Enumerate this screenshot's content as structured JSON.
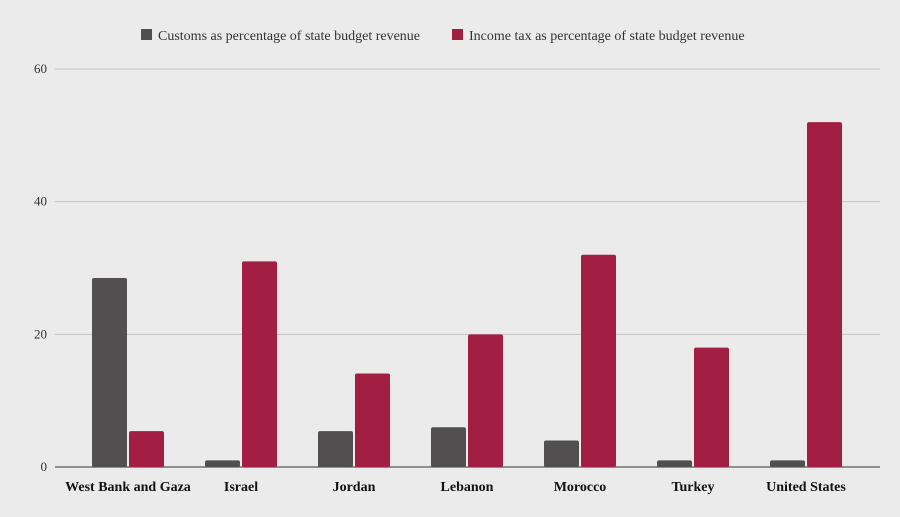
{
  "chart_data": {
    "type": "bar",
    "title": "",
    "xlabel": "",
    "ylabel": "",
    "ylim": [
      0,
      60
    ],
    "yticks": [
      "0",
      "20",
      "40",
      "60"
    ],
    "grid": true,
    "legend_position": "top",
    "categories": [
      "West Bank and Gaza",
      "Israel",
      "Jordan",
      "Lebanon",
      "Morocco",
      "Turkey",
      "United States"
    ],
    "series": [
      {
        "name": "Customs as percentage of state budget revenue",
        "color": "#514f50",
        "values": [
          28.5,
          1,
          5.4,
          6,
          4,
          1,
          1
        ]
      },
      {
        "name": "Income tax as percentage of state budget revenue",
        "color": "#a21f43",
        "values": [
          5.4,
          31,
          14.1,
          20,
          32,
          18,
          52
        ]
      }
    ]
  }
}
